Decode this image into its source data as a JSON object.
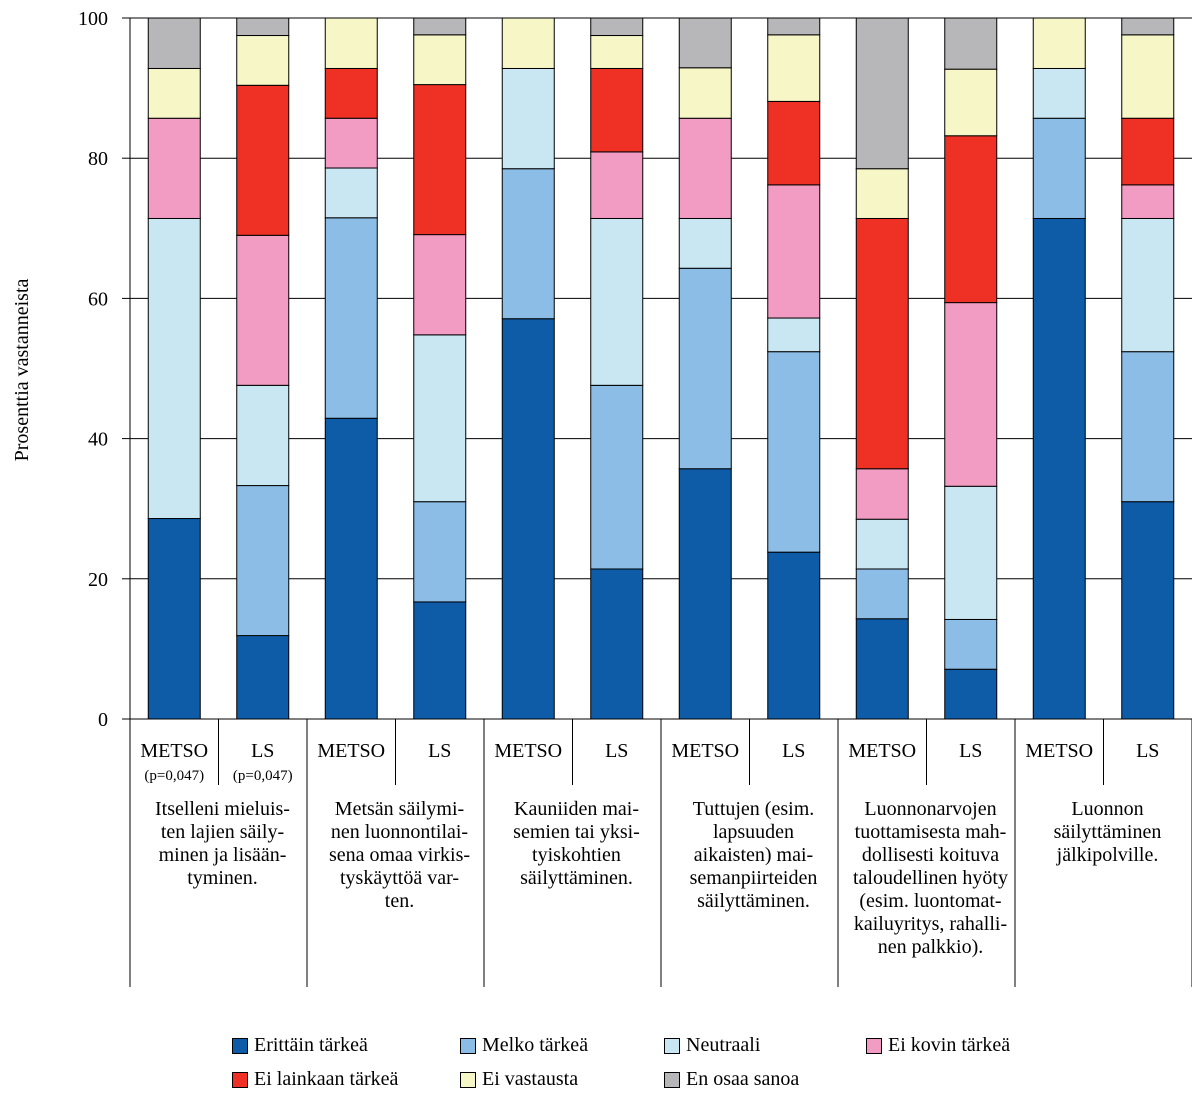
{
  "chart_data": {
    "type": "bar",
    "stacked": true,
    "ylabel": "Prosenttia vastanneista",
    "ylim": [
      0,
      100
    ],
    "yticks": [
      "0",
      "20",
      "40",
      "60",
      "80",
      "100"
    ],
    "grid": true,
    "legend_position": "bottom",
    "series": [
      {
        "name": "Erittäin tärkeä",
        "color": "#0e5ba8"
      },
      {
        "name": "Melko tärkeä",
        "color": "#8cbde6"
      },
      {
        "name": "Neutraali",
        "color": "#c9e7f2"
      },
      {
        "name": "Ei kovin tärkeä",
        "color": "#f29bc3"
      },
      {
        "name": "Ei lainkaan tärkeä",
        "color": "#ee3124"
      },
      {
        "name": "Ei vastausta",
        "color": "#f7f6c6"
      },
      {
        "name": "En osaa sanoa",
        "color": "#b7b7b9"
      }
    ],
    "groups": [
      {
        "label_lines": [
          "Itselleni mieluis-",
          "ten lajien säily-",
          "minen ja lisään-",
          "tyminen."
        ],
        "bars": [
          {
            "name": "METSO",
            "note": "(p=0,047)",
            "values": [
              28.6,
              0,
              42.8,
              14.3,
              0,
              7.1,
              7.2
            ]
          },
          {
            "name": "LS",
            "note": "(p=0,047)",
            "values": [
              11.9,
              21.4,
              14.3,
              21.4,
              21.4,
              7.1,
              2.5
            ]
          }
        ]
      },
      {
        "label_lines": [
          "Metsän säilymi-",
          "nen luonnontilai-",
          "sena omaa virkis-",
          "tyskäyttöä var-",
          "ten."
        ],
        "bars": [
          {
            "name": "METSO",
            "note": "",
            "values": [
              42.9,
              28.6,
              7.1,
              7.1,
              7.1,
              7.2,
              0
            ]
          },
          {
            "name": "LS",
            "note": "",
            "values": [
              16.7,
              14.3,
              23.8,
              14.3,
              21.4,
              7.1,
              2.4
            ]
          }
        ]
      },
      {
        "label_lines": [
          "Kauniiden mai-",
          "semien tai yksi-",
          "tyiskohtien",
          "säilyttäminen."
        ],
        "bars": [
          {
            "name": "METSO",
            "note": "",
            "values": [
              57.1,
              21.4,
              14.3,
              0,
              0,
              7.2,
              0
            ]
          },
          {
            "name": "LS",
            "note": "",
            "values": [
              21.4,
              26.2,
              23.8,
              9.5,
              11.9,
              4.7,
              2.5
            ]
          }
        ]
      },
      {
        "label_lines": [
          "Tuttujen (esim.",
          "lapsuuden",
          "aikaisten) mai-",
          "semanpiirteiden",
          "säilyttäminen."
        ],
        "bars": [
          {
            "name": "METSO",
            "note": "",
            "values": [
              35.7,
              28.6,
              7.1,
              14.3,
              0,
              7.2,
              7.1
            ]
          },
          {
            "name": "LS",
            "note": "",
            "values": [
              23.8,
              28.6,
              4.8,
              19.0,
              11.9,
              9.5,
              2.4
            ]
          }
        ]
      },
      {
        "label_lines": [
          "Luonnonarvojen",
          "tuottamisesta mah-",
          "dollisesti koituva",
          "taloudellinen hyöty",
          "(esim. luontomat-",
          "kailuyritys, rahalli-",
          "nen palkkio)."
        ],
        "bars": [
          {
            "name": "METSO",
            "note": "",
            "values": [
              14.3,
              7.1,
              7.1,
              7.2,
              35.7,
              7.1,
              21.5
            ]
          },
          {
            "name": "LS",
            "note": "",
            "values": [
              7.1,
              7.1,
              19.0,
              26.2,
              23.8,
              9.5,
              7.3
            ]
          }
        ]
      },
      {
        "label_lines": [
          "Luonnon",
          "säilyttäminen",
          "jälkipolville."
        ],
        "bars": [
          {
            "name": "METSO",
            "note": "",
            "values": [
              71.4,
              14.3,
              7.1,
              0,
              0,
              7.2,
              0
            ]
          },
          {
            "name": "LS",
            "note": "",
            "values": [
              31.0,
              21.4,
              19.0,
              4.8,
              9.5,
              11.9,
              2.4
            ]
          }
        ]
      }
    ]
  }
}
